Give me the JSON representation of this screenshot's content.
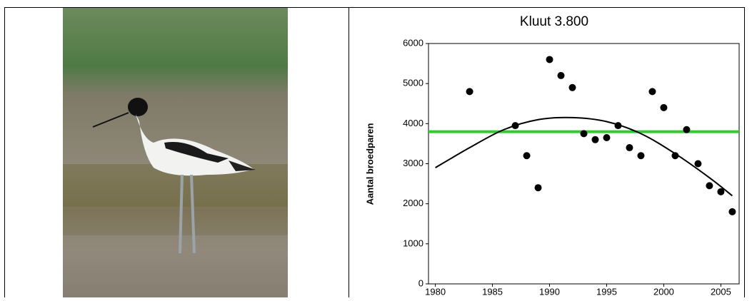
{
  "chart_data": {
    "type": "scatter",
    "title": "Kluut 3.800",
    "y_label": "Aantal broedparen",
    "x": [
      1983,
      1987,
      1988,
      1989,
      1990,
      1991,
      1992,
      1993,
      1994,
      1995,
      1996,
      1997,
      1998,
      1999,
      2000,
      2001,
      2002,
      2003,
      2004,
      2005,
      2006
    ],
    "values": [
      4800,
      3950,
      3200,
      2400,
      5600,
      5200,
      4900,
      3750,
      3600,
      3650,
      3950,
      3400,
      3200,
      4800,
      4400,
      3200,
      3850,
      3000,
      2450,
      2300,
      1800
    ],
    "color": "#000000",
    "trend": {
      "x": [
        1980,
        1983,
        1986,
        1989,
        1992,
        1995,
        1998,
        2001,
        2004,
        2006
      ],
      "values": [
        2900,
        3400,
        3850,
        4100,
        4150,
        4050,
        3750,
        3250,
        2650,
        2200
      ],
      "color": "#000000"
    },
    "reference_line": {
      "value": 3800,
      "color": "#2ecc2e"
    },
    "xlim": [
      1979.4,
      2006.6
    ],
    "ylim": [
      0,
      6000
    ],
    "xticks": [
      1980,
      1985,
      1990,
      1995,
      2000,
      2005
    ],
    "yticks": [
      0,
      1000,
      2000,
      3000,
      4000,
      5000,
      6000
    ]
  }
}
